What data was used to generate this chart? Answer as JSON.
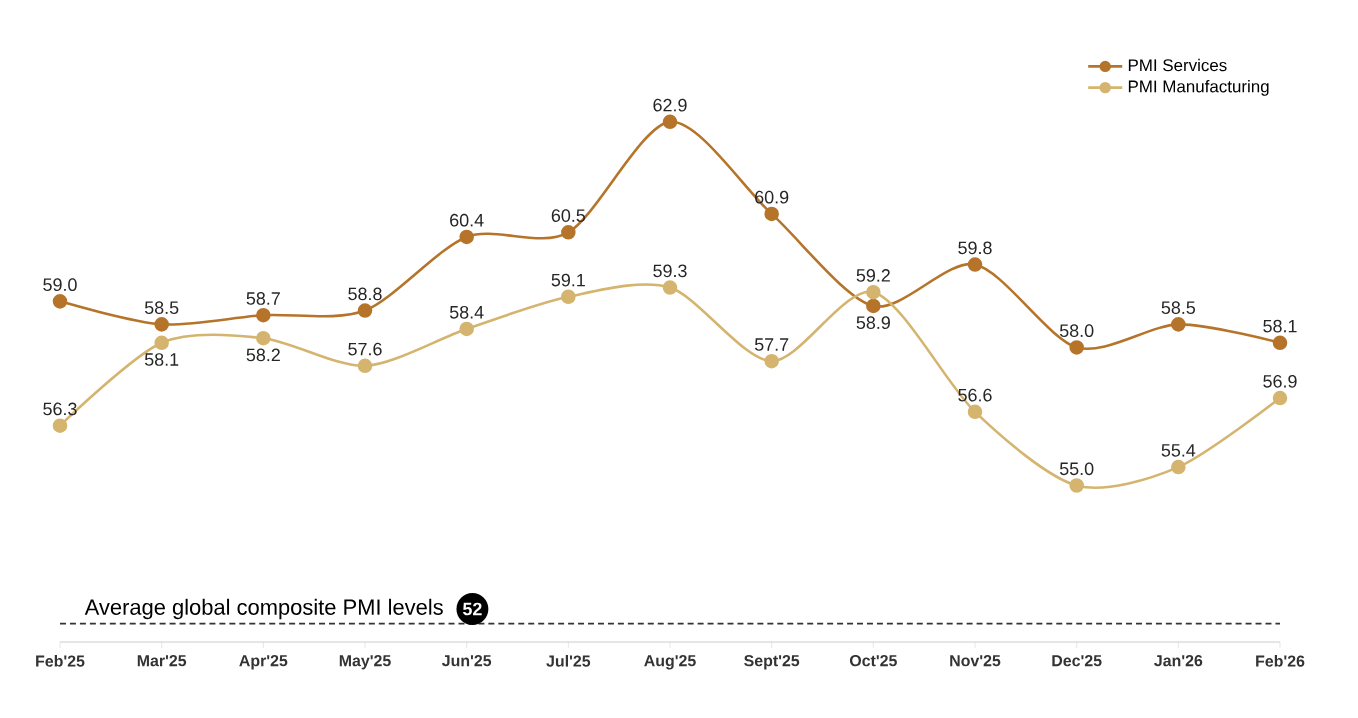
{
  "chart_data": {
    "type": "line",
    "categories": [
      "Feb'25",
      "Mar'25",
      "Apr'25",
      "May'25",
      "Jun'25",
      "Jul'25",
      "Aug'25",
      "Sept'25",
      "Oct'25",
      "Nov'25",
      "Dec'25",
      "Jan'26",
      "Feb'26"
    ],
    "series": [
      {
        "name": "PMI Services",
        "color": "#b5742a",
        "values": [
          59.0,
          58.5,
          58.7,
          58.8,
          60.4,
          60.5,
          62.9,
          60.9,
          58.9,
          59.8,
          58.0,
          58.5,
          58.1
        ],
        "value_labels": [
          "59.0",
          "58.5",
          "58.7",
          "58.8",
          "60.4",
          "60.5",
          "62.9",
          "60.9",
          "58.9",
          "59.8",
          "58.0",
          "58.5",
          "58.1"
        ]
      },
      {
        "name": "PMI Manufacturing",
        "color": "#d4b46e",
        "values": [
          56.3,
          58.1,
          58.2,
          57.6,
          58.4,
          59.1,
          59.3,
          57.7,
          59.2,
          56.6,
          55.0,
          55.4,
          56.9
        ],
        "value_labels": [
          "56.3",
          "58.1",
          "58.2",
          "57.6",
          "58.4",
          "59.1",
          "59.3",
          "57.7",
          "59.2",
          "56.6",
          "55.0",
          "55.4",
          "56.9"
        ]
      }
    ],
    "tick_labels": "x",
    "legend": "top right",
    "marker": "circle",
    "line_style": "solid",
    "ref_lines": [
      {
        "axis": "y",
        "value": 52,
        "label": "Average global composite PMI levels",
        "color": "#333333",
        "line_style": "dashed"
      }
    ],
    "annotations": [
      {
        "text": "52",
        "y": 52
      }
    ]
  }
}
